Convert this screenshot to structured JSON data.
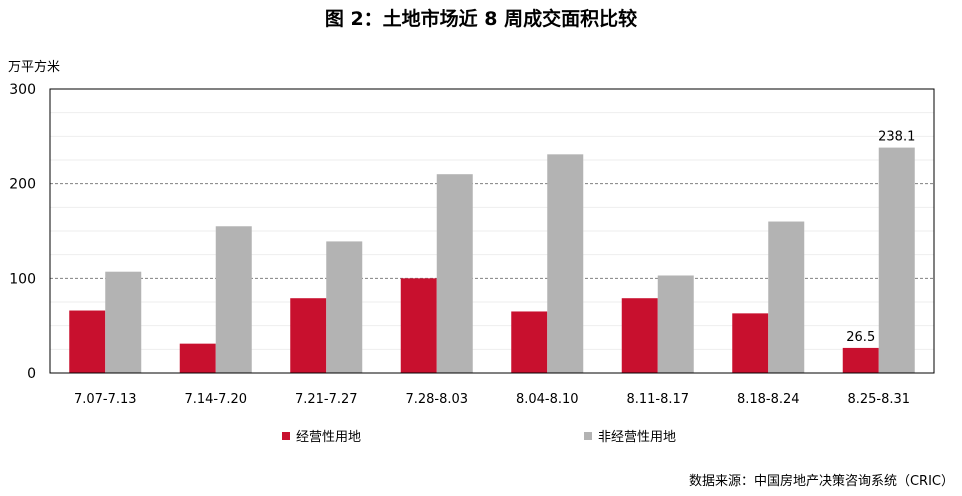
{
  "title": "图 2：土地市场近 8 周成交面积比较",
  "unit_label": "万平方米",
  "source": "数据来源：中国房地产决策咨询系统（CRIC）",
  "colors": {
    "operating": "#c8102e",
    "non_operating": "#b3b3b3"
  },
  "chart_data": {
    "type": "bar",
    "title": "图 2：土地市场近 8 周成交面积比较",
    "xlabel": "",
    "ylabel": "万平方米",
    "ylim": [
      0,
      300
    ],
    "yticks": [
      0,
      100,
      200,
      300
    ],
    "grid": true,
    "legend_position": "bottom",
    "categories": [
      "7.07-7.13",
      "7.14-7.20",
      "7.21-7.27",
      "7.28-8.03",
      "8.04-8.10",
      "8.11-8.17",
      "8.18-8.24",
      "8.25-8.31"
    ],
    "series": [
      {
        "name": "经营性用地",
        "color": "#c8102e",
        "values": [
          66,
          31,
          79,
          100,
          65,
          79,
          63,
          26.5
        ]
      },
      {
        "name": "非经营性用地",
        "color": "#b3b3b3",
        "values": [
          107,
          155,
          139,
          210,
          231,
          103,
          160,
          238.1
        ]
      }
    ],
    "data_labels": [
      {
        "series": 0,
        "index": 7,
        "text": "26.5"
      },
      {
        "series": 1,
        "index": 7,
        "text": "238.1"
      }
    ]
  }
}
